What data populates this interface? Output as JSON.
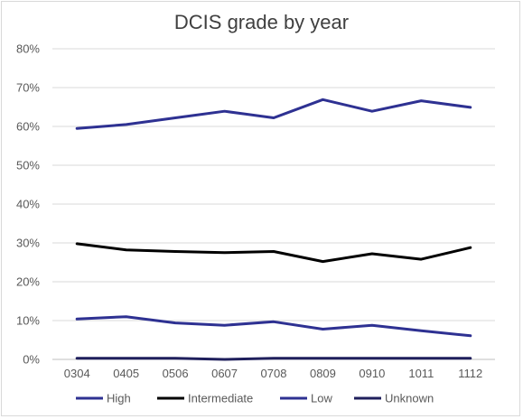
{
  "chart_data": {
    "type": "line",
    "title": "DCIS grade by year",
    "categories": [
      "0304",
      "0405",
      "0506",
      "0607",
      "0708",
      "0809",
      "0910",
      "1011",
      "1112"
    ],
    "y_ticks": [
      "0%",
      "10%",
      "20%",
      "30%",
      "40%",
      "50%",
      "60%",
      "70%",
      "80%"
    ],
    "ylim": [
      0,
      80
    ],
    "grid": true,
    "legend_position": "bottom",
    "series": [
      {
        "name": "High",
        "color": "#2e3192",
        "values": [
          59.5,
          60.5,
          62.2,
          63.9,
          62.2,
          66.9,
          63.9,
          66.6,
          64.9
        ]
      },
      {
        "name": "Intermediate",
        "color": "#000000",
        "values": [
          29.8,
          28.2,
          27.8,
          27.5,
          27.8,
          25.2,
          27.2,
          25.8,
          28.8
        ]
      },
      {
        "name": "Low",
        "color": "#2e3192",
        "values": [
          10.4,
          11.0,
          9.4,
          8.8,
          9.7,
          7.8,
          8.8,
          7.4,
          6.1
        ]
      },
      {
        "name": "Unknown",
        "color": "#1f1f5c",
        "values": [
          0.3,
          0.3,
          0.3,
          0.0,
          0.3,
          0.3,
          0.3,
          0.3,
          0.3
        ]
      }
    ]
  }
}
